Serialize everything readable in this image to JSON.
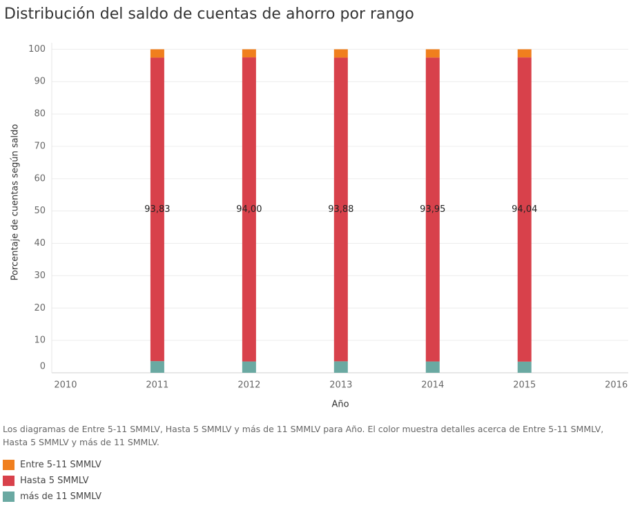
{
  "chart_data": {
    "type": "stacked-bar",
    "title": "Distribución del saldo de cuentas de ahorro por rango",
    "x_label": "Año",
    "y_label": "Porcentaje de cuentas según saldo",
    "caption": "Los diagramas de Entre 5-11 SMMLV, Hasta 5 SMMLV y más de 11 SMMLV para Año.  El color muestra detalles acerca de Entre 5-11 SMMLV, Hasta 5 SMMLV y más de 11 SMMLV.",
    "x": [
      2011,
      2012,
      2013,
      2014,
      2015
    ],
    "xlim": [
      2009.85,
      2016.13
    ],
    "xticks": [
      2010,
      2011,
      2012,
      2013,
      2014,
      2015,
      2016
    ],
    "ylim": [
      0,
      102
    ],
    "yticks": [
      0,
      10,
      20,
      30,
      40,
      50,
      60,
      70,
      80,
      90,
      100
    ],
    "grid": true,
    "series": [
      {
        "name": "Entre 5-11 SMMLV",
        "color": "#f07f1e",
        "values": [
          2.57,
          2.5,
          2.57,
          2.55,
          2.51
        ]
      },
      {
        "name": "Hasta 5 SMMLV",
        "color": "#d8414b",
        "values": [
          93.83,
          94.0,
          93.88,
          93.95,
          94.04
        ],
        "value_labels": [
          "93,83",
          "94,00",
          "93,88",
          "93,95",
          "94,04"
        ]
      },
      {
        "name": "más de 11 SMMLV",
        "color": "#6aa9a2",
        "values": [
          3.6,
          3.5,
          3.55,
          3.5,
          3.45
        ]
      }
    ]
  }
}
